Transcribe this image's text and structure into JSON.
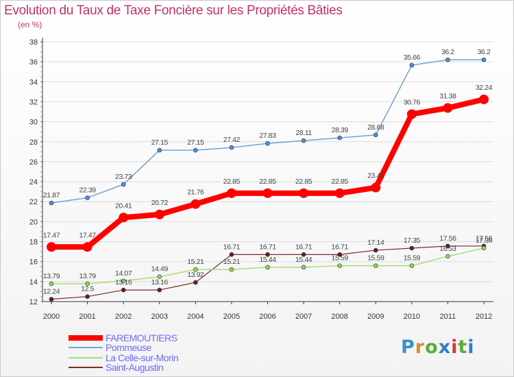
{
  "title": "Evolution du Taux de Taxe Foncière sur les Propriétés Bâties",
  "unit": "(en %)",
  "logo": {
    "text": "Proxiti",
    "letter_colors": [
      "#3a8fd0",
      "#e38a2c",
      "#5bab3c",
      "#2f7fc4",
      "#d6372f",
      "#5bab3c",
      "#2f7fc4"
    ]
  },
  "chart_data": {
    "type": "line",
    "x": [
      "2000",
      "2001",
      "2002",
      "2003",
      "2004",
      "2005",
      "2006",
      "2007",
      "2008",
      "2009",
      "2010",
      "2011",
      "2012"
    ],
    "ylim": [
      12,
      38
    ],
    "yticks": [
      12,
      14,
      16,
      18,
      20,
      22,
      24,
      26,
      28,
      30,
      32,
      34,
      36,
      38
    ],
    "grid": "horizontal",
    "legend_position": "bottom-left",
    "series": [
      {
        "name": "FAREMOUTIERS",
        "color": "#ff0000",
        "values": [
          17.47,
          17.47,
          20.41,
          20.72,
          21.76,
          22.85,
          22.85,
          22.85,
          22.85,
          23.41,
          30.76,
          31.38,
          32.24
        ],
        "labels": [
          "17.47",
          "17.47",
          "20.41",
          "20.72",
          "21.76",
          "22.85",
          "22.85",
          "22.85",
          "22.85",
          "23.41",
          "30.76",
          "31.38",
          "32.24"
        ]
      },
      {
        "name": "Pommeuse",
        "color": "#6fa3d6",
        "values": [
          21.87,
          22.39,
          23.73,
          27.15,
          27.15,
          27.42,
          27.83,
          28.11,
          28.39,
          28.68,
          35.66,
          36.2,
          36.2
        ],
        "labels": [
          "21.87",
          "22.39",
          "23.73",
          "27.15",
          "27.15",
          "27.42",
          "27.83",
          "28.11",
          "28.39",
          "28.68",
          "35.66",
          "36.2",
          "36.2"
        ]
      },
      {
        "name": "La Celle-sur-Morin",
        "color": "#a8dc78",
        "values": [
          13.79,
          13.79,
          14.07,
          14.49,
          15.21,
          15.21,
          15.44,
          15.44,
          15.59,
          15.59,
          15.59,
          16.53,
          17.36
        ],
        "labels": [
          "13.79",
          "13.79",
          "14.07",
          "14.49",
          "15.21",
          "15.21",
          "15.44",
          "15.44",
          "15.59",
          "15.59",
          "15.59",
          "16.53",
          "17.36"
        ]
      },
      {
        "name": "Saint-Augustin",
        "color": "#7a2a2a",
        "values": [
          12.24,
          12.5,
          13.16,
          13.16,
          13.92,
          16.71,
          16.71,
          16.71,
          16.71,
          17.14,
          17.35,
          17.56,
          17.56
        ],
        "labels": [
          "12.24",
          "12.5",
          "13.16",
          "13.16",
          "13.92",
          "16.71",
          "16.71",
          "16.71",
          "16.71",
          "17.14",
          "17.35",
          "17.56",
          "17.56"
        ]
      }
    ]
  }
}
